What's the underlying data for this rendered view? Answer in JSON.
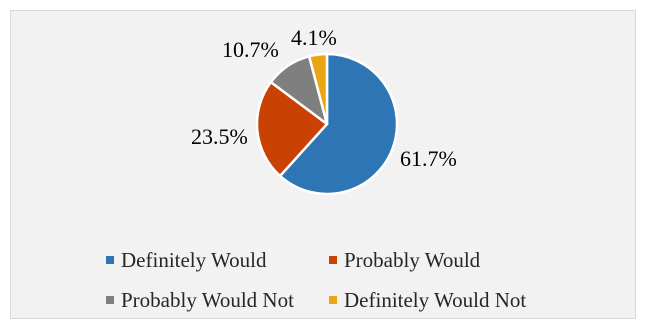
{
  "chart_data": {
    "type": "pie",
    "categories": [
      "Definitely Would",
      "Probably Would",
      "Probably Would Not",
      "Definitely Would Not"
    ],
    "values": [
      61.7,
      23.5,
      10.7,
      4.1
    ],
    "labels": [
      "61.7%",
      "23.5%",
      "10.7%",
      "4.1%"
    ],
    "colors": [
      "#2e75b6",
      "#c94103",
      "#7f7f7f",
      "#eba514"
    ],
    "title": "",
    "legend_position": "bottom",
    "start_angle_deg": 0,
    "direction": "clockwise",
    "border_color": "#ffffff"
  }
}
